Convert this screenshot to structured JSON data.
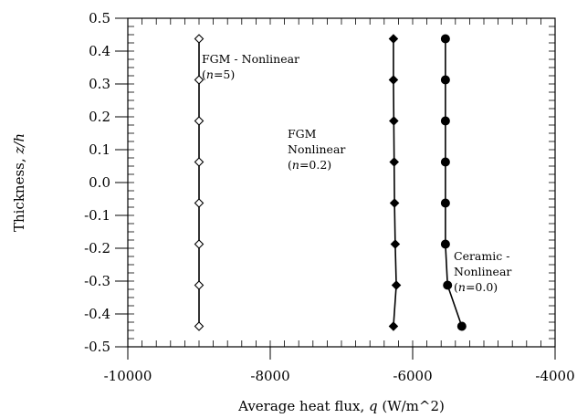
{
  "chart_data": {
    "type": "line",
    "title": "",
    "xlabel": "Average heat flux, q (W/m^2)",
    "ylabel": "Thickness, z/h",
    "xlim": [
      -10000,
      -4000
    ],
    "ylim": [
      -0.5,
      0.5
    ],
    "x_ticks": [
      -10000,
      -8000,
      -6000,
      -4000
    ],
    "x_tick_labels": [
      "-10000",
      "-8000",
      "-6000",
      "-4000"
    ],
    "y_ticks": [
      0.5,
      0.4,
      0.3,
      0.2,
      0.1,
      0.0,
      -0.1,
      -0.2,
      -0.3,
      -0.4,
      -0.5
    ],
    "y_tick_labels": [
      "0.5",
      "0.4",
      "0.3",
      "0.2",
      "0.1",
      "0.0",
      "-0.1",
      "-0.2",
      "-0.3",
      "-0.4",
      "-0.5"
    ],
    "grid": false,
    "series": [
      {
        "marker": "open-diamond",
        "x": [
          -9000,
          -9000,
          -9000,
          -9000,
          -9000,
          -9000,
          -9000,
          -9000
        ],
        "y": [
          0.4375,
          0.3125,
          0.1875,
          0.0625,
          -0.0625,
          -0.1875,
          -0.3125,
          -0.4375
        ]
      },
      {
        "marker": "filled-diamond",
        "x": [
          -6270,
          -6270,
          -6265,
          -6260,
          -6255,
          -6245,
          -6230,
          -6270
        ],
        "y": [
          0.4375,
          0.3125,
          0.1875,
          0.0625,
          -0.0625,
          -0.1875,
          -0.3125,
          -0.4375
        ]
      },
      {
        "marker": "filled-circle",
        "x": [
          -5540,
          -5540,
          -5540,
          -5540,
          -5540,
          -5540,
          -5510,
          -5310
        ],
        "y": [
          0.4375,
          0.3125,
          0.1875,
          0.0625,
          -0.0625,
          -0.1875,
          -0.3125,
          -0.4375
        ]
      }
    ],
    "annotations": [
      {
        "lines": [
          "FGM - Nonlinear",
          "(n=5)"
        ]
      },
      {
        "lines": [
          "FGM",
          "Nonlinear",
          "(n=0.2)"
        ]
      },
      {
        "lines": [
          "Ceramic -",
          "Nonlinear",
          "(n=0.0)"
        ]
      }
    ]
  }
}
